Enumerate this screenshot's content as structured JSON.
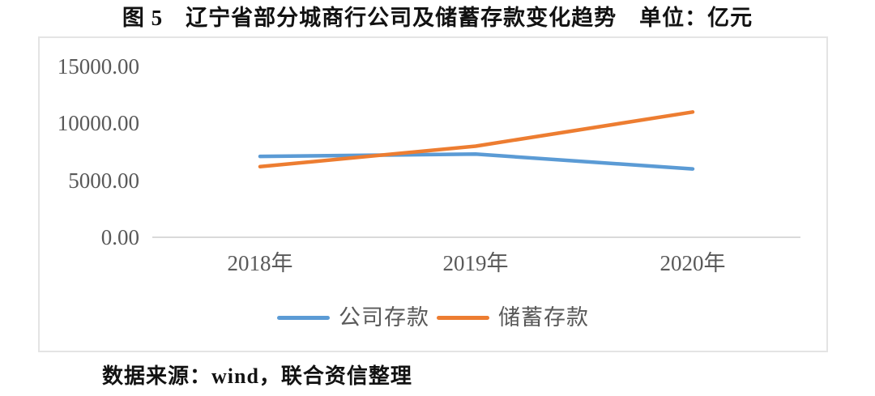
{
  "page": {
    "title": "图 5　辽宁省部分城商行公司及储蓄存款变化趋势　单位：亿元",
    "source_note": "数据来源：wind，联合资信整理"
  },
  "chart_data": {
    "type": "line",
    "title": "图5 辽宁省部分城商行公司及储蓄存款变化趋势",
    "unit": "亿元",
    "categories": [
      "2018年",
      "2019年",
      "2020年"
    ],
    "series": [
      {
        "name": "公司存款",
        "color": "#5B9BD5",
        "values": [
          7100,
          7300,
          6000
        ]
      },
      {
        "name": "储蓄存款",
        "color": "#ED7D31",
        "values": [
          6200,
          8000,
          11000
        ]
      }
    ],
    "ylim": [
      0,
      15000
    ],
    "yticks": [
      {
        "label": "15000.00",
        "value": 15000
      },
      {
        "label": "10000.00",
        "value": 10000
      },
      {
        "label": "5000.00",
        "value": 5000
      },
      {
        "label": "0.00",
        "value": 0
      }
    ],
    "grid": false,
    "legend_position": "bottom",
    "axis_line_color": "#D9D9D9",
    "tick_label_color": "#595959",
    "frame_border_color": "#E4E4E4"
  }
}
